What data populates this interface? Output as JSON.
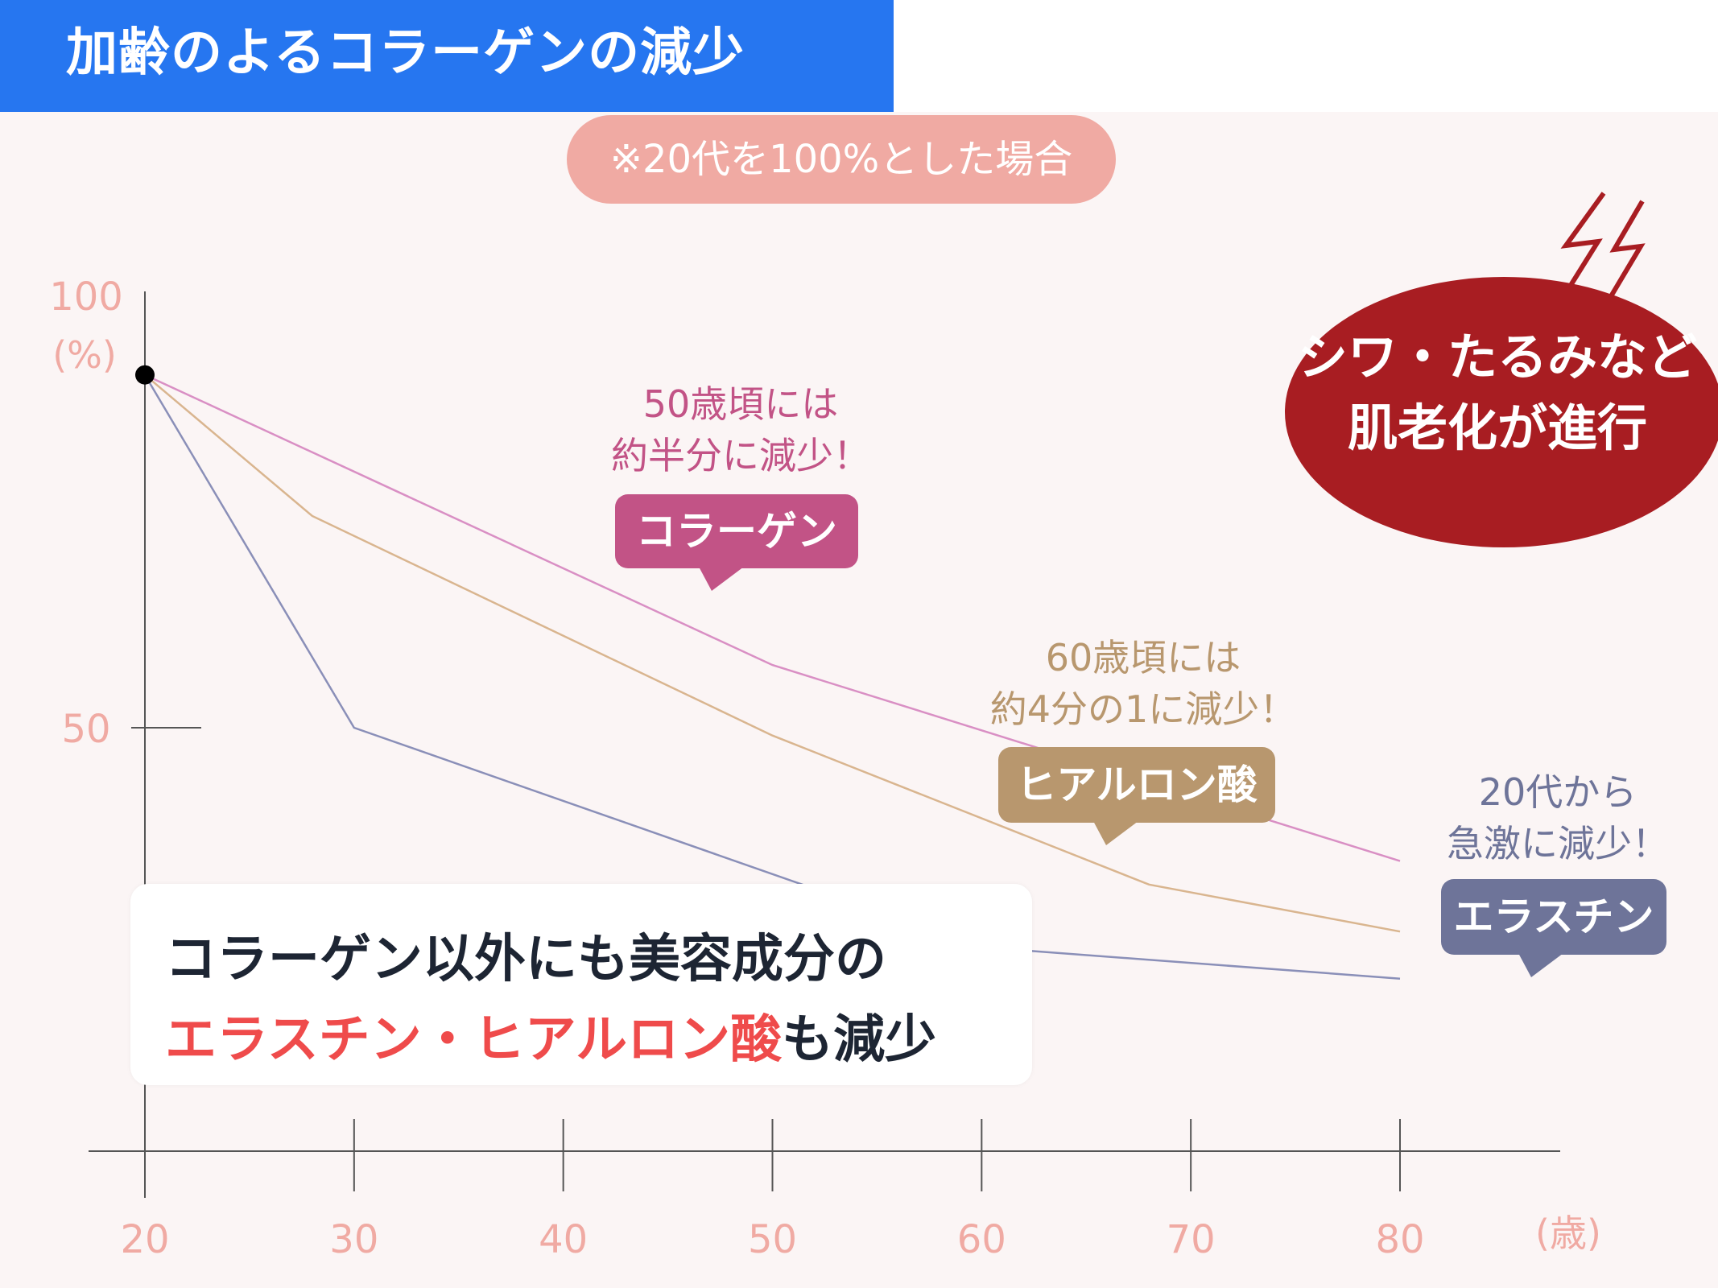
{
  "header": {
    "title": "加齢のよるコラーゲンの減少"
  },
  "note": "※20代を100%とした場合",
  "warning": {
    "line1": "シワ・たるみなど",
    "line2": "肌老化が進行",
    "color": "#a81d22"
  },
  "callouts": {
    "collagen": {
      "line1": "50歳頃には",
      "line2": "約半分に減少！",
      "label": "コラーゲン",
      "color": "#c25386"
    },
    "hyaluronic": {
      "line1": "60歳頃には",
      "line2": "約4分の1に減少！",
      "label": "ヒアルロン酸",
      "color": "#b8976e"
    },
    "elastin": {
      "line1": "20代から",
      "line2": "急激に減少！",
      "label": "エラスチン",
      "color": "#6e7499"
    }
  },
  "summary": {
    "line1": "コラーゲン以外にも美容成分の",
    "line2_accent": "エラスチン・ヒアルロン酸",
    "line2_rest": "も減少"
  },
  "chart_data": {
    "type": "line",
    "x": [
      20,
      28,
      30,
      50,
      60,
      68,
      80
    ],
    "xlim": [
      20,
      80
    ],
    "ylim": [
      0,
      100
    ],
    "x_ticks": [
      "20",
      "30",
      "40",
      "50",
      "60",
      "70",
      "80"
    ],
    "x_unit": "(歳)",
    "y_ticks": [
      "100",
      "50"
    ],
    "y_unit": "(%)",
    "series": [
      {
        "name": "コラーゲン",
        "color": "#d98fc4",
        "points": [
          [
            20,
            95
          ],
          [
            50,
            58
          ],
          [
            80,
            33
          ]
        ]
      },
      {
        "name": "ヒアルロン酸",
        "color": "#d9b58f",
        "points": [
          [
            20,
            95
          ],
          [
            28,
            77
          ],
          [
            50,
            49
          ],
          [
            68,
            30
          ],
          [
            80,
            24
          ]
        ]
      },
      {
        "name": "エラスチン",
        "color": "#8a8fb8",
        "points": [
          [
            20,
            95
          ],
          [
            30,
            50
          ],
          [
            60,
            22
          ],
          [
            80,
            18
          ]
        ]
      }
    ],
    "start_point": [
      20,
      95
    ],
    "grid": false
  }
}
